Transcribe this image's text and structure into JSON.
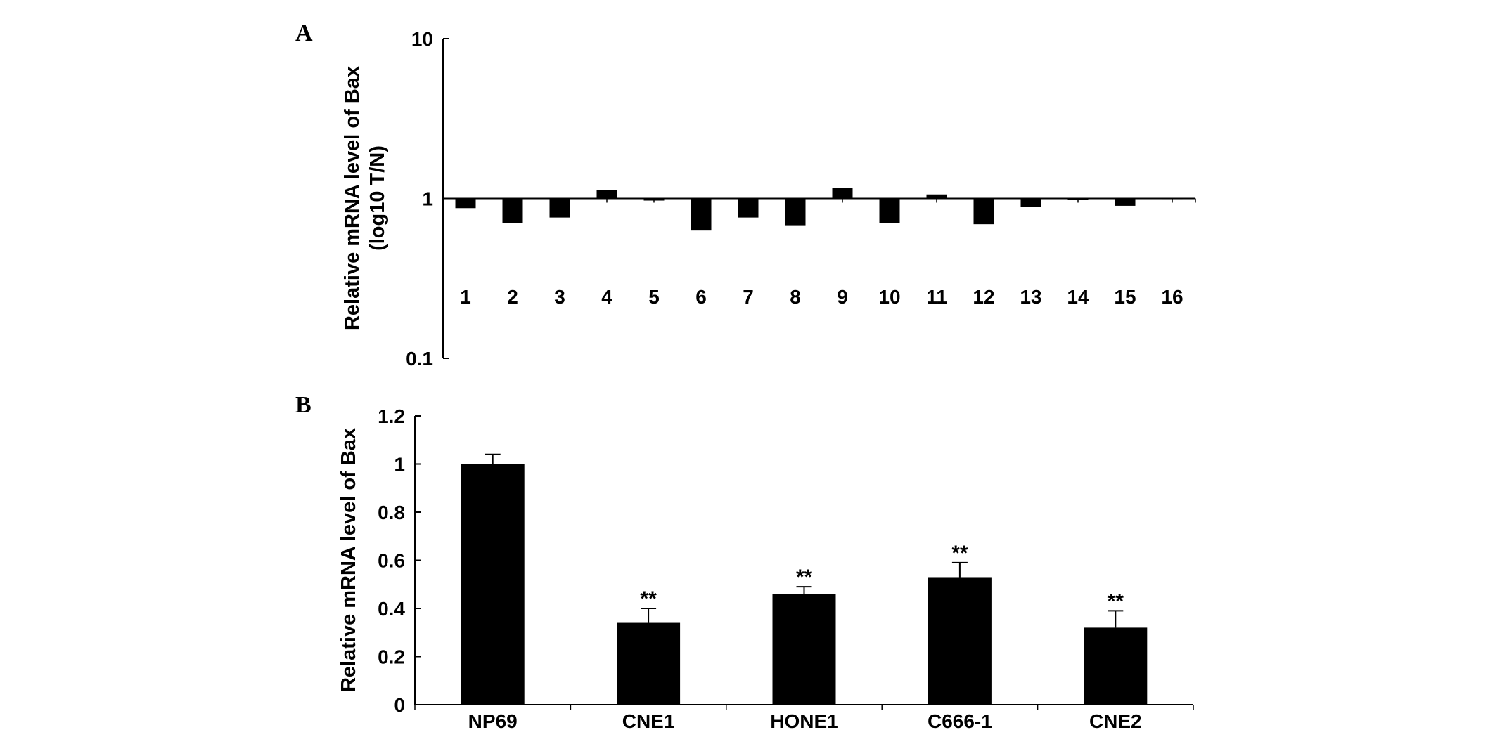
{
  "panels": {
    "a": {
      "letter": "A"
    },
    "b": {
      "letter": "B"
    }
  },
  "chart_data": [
    {
      "type": "bar",
      "panel": "A",
      "y_scale": "log",
      "ylabel": [
        "Relative mRNA level of Bax",
        "(log10 T/N)"
      ],
      "ylim": [
        0.1,
        10
      ],
      "y_ticks": [
        0.1,
        1,
        10
      ],
      "y_tick_labels": [
        "0.1",
        "1",
        "10"
      ],
      "baseline": 1,
      "categories": [
        "1",
        "2",
        "3",
        "4",
        "5",
        "6",
        "7",
        "8",
        "9",
        "10",
        "11",
        "12",
        "13",
        "14",
        "15",
        "16"
      ],
      "values": [
        0.87,
        0.7,
        0.76,
        1.13,
        0.97,
        0.63,
        0.76,
        0.68,
        1.16,
        0.7,
        1.06,
        0.69,
        0.89,
        0.98,
        0.9,
        1.01
      ],
      "bar_color": "#000000"
    },
    {
      "type": "bar",
      "panel": "B",
      "ylabel": "Relative mRNA level of Bax",
      "ylim": [
        0,
        1.2
      ],
      "y_ticks": [
        0,
        0.2,
        0.4,
        0.6,
        0.8,
        1,
        1.2
      ],
      "y_tick_labels": [
        "0",
        "0.2",
        "0.4",
        "0.6",
        "0.8",
        "1",
        "1.2"
      ],
      "categories": [
        "NP69",
        "CNE1",
        "HONE1",
        "C666-1",
        "CNE2"
      ],
      "values": [
        1.0,
        0.34,
        0.46,
        0.53,
        0.32
      ],
      "errors": [
        0.04,
        0.06,
        0.03,
        0.06,
        0.07
      ],
      "annotations": [
        "",
        "**",
        "**",
        "**",
        "**"
      ],
      "bar_color": "#000000"
    }
  ]
}
